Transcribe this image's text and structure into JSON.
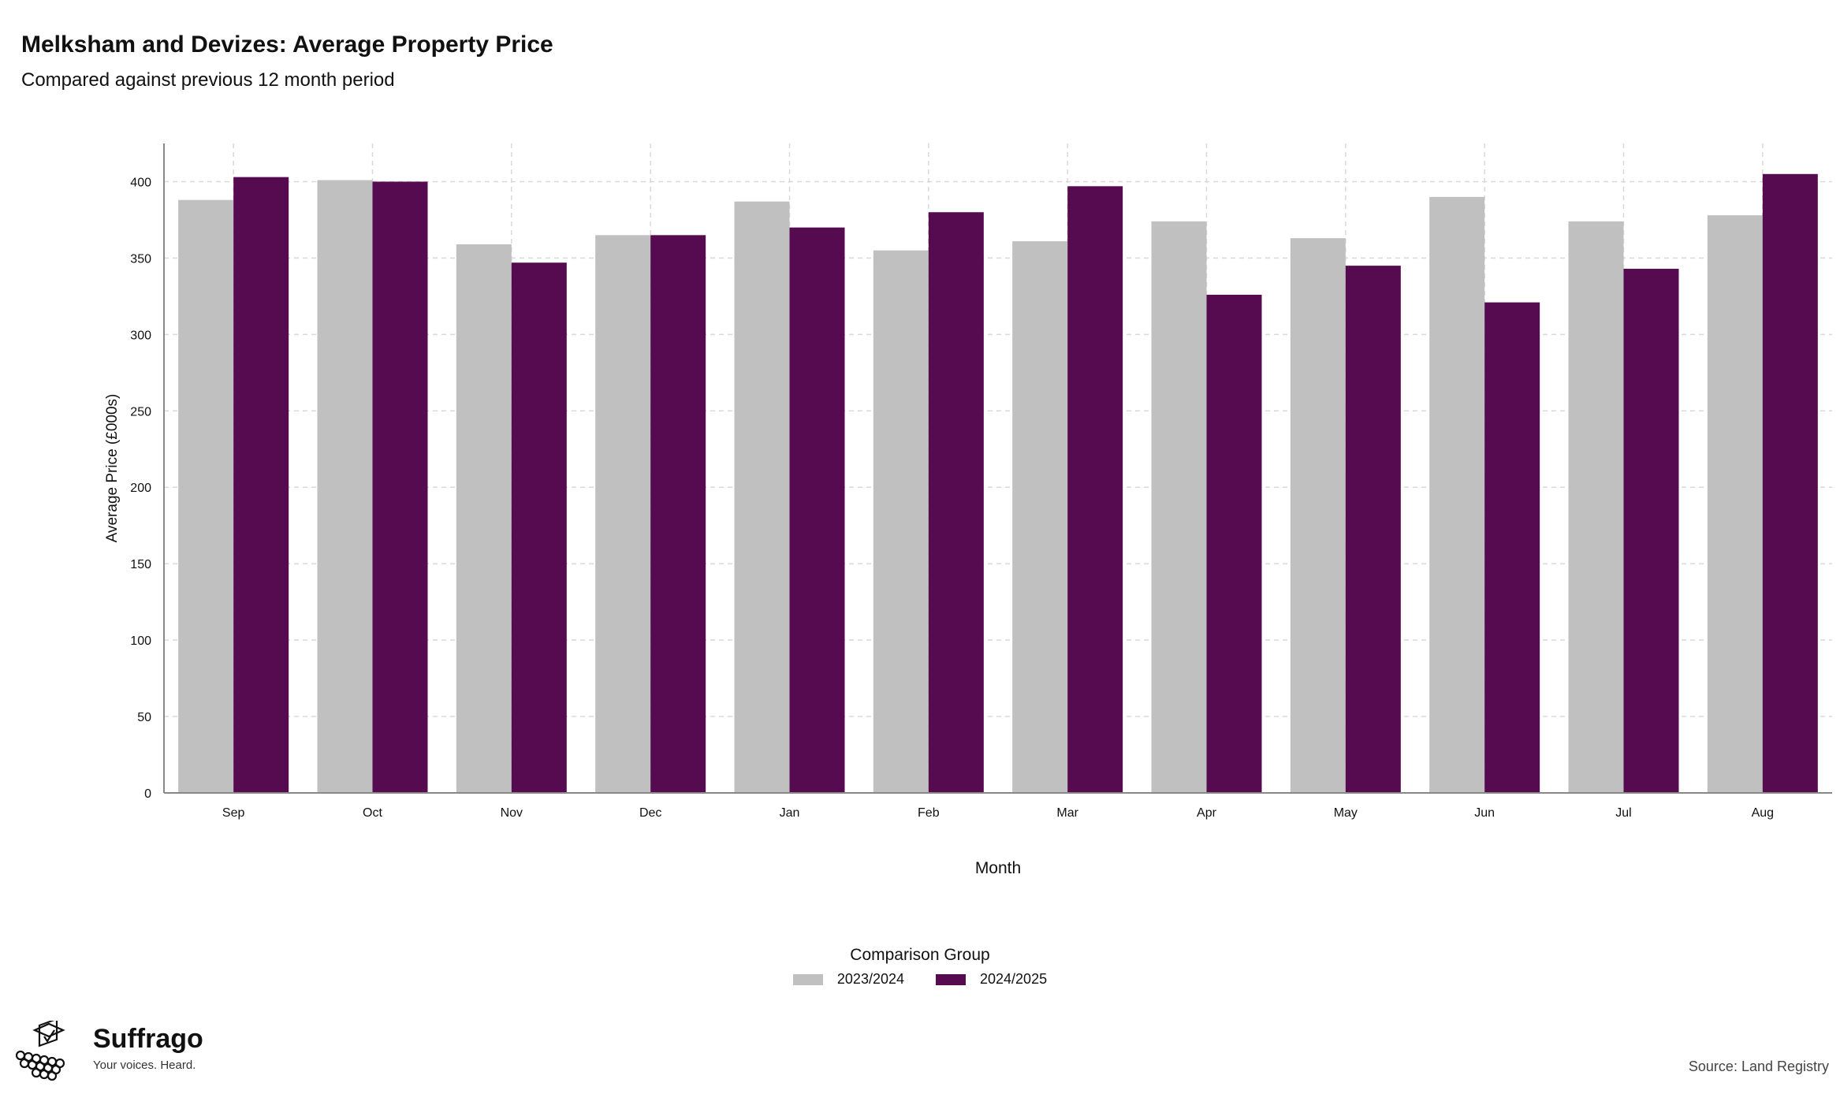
{
  "header": {
    "title": "Melksham and Devizes: Average Property Price",
    "subtitle": "Compared against previous 12 month period"
  },
  "chart_data": {
    "type": "bar",
    "title": "Melksham and Devizes: Average Property Price",
    "subtitle": "Compared against previous 12 month period",
    "xlabel": "Month",
    "ylabel": "Average Price (£000s)",
    "ylim": [
      0,
      425
    ],
    "yticks": [
      0,
      50,
      100,
      150,
      200,
      250,
      300,
      350,
      400
    ],
    "grid": true,
    "legend_title": "Comparison Group",
    "legend_position": "bottom",
    "categories": [
      "Sep",
      "Oct",
      "Nov",
      "Dec",
      "Jan",
      "Feb",
      "Mar",
      "Apr",
      "May",
      "Jun",
      "Jul",
      "Aug"
    ],
    "series": [
      {
        "name": "2023/2024",
        "color": "#c0c0c0",
        "values": [
          388,
          401,
          359,
          365,
          387,
          355,
          361,
          374,
          363,
          390,
          374,
          378
        ]
      },
      {
        "name": "2024/2025",
        "color": "#560b51",
        "values": [
          403,
          400,
          347,
          365,
          370,
          380,
          397,
          326,
          345,
          321,
          343,
          405
        ]
      }
    ]
  },
  "brand": {
    "name": "Suffrago",
    "tagline": "Your voices. Heard."
  },
  "footer": {
    "source": "Source: Land Registry"
  }
}
